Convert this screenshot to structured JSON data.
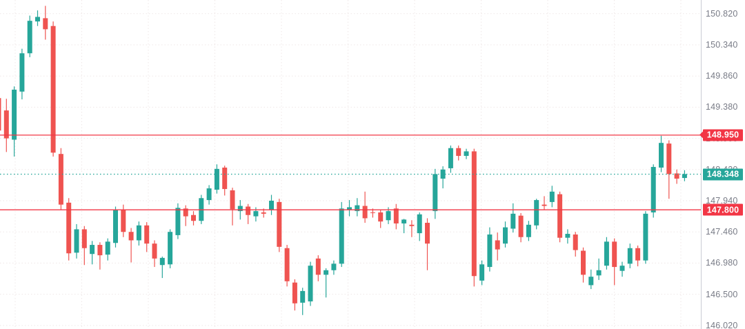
{
  "app": {
    "kind": "candlestick-price-chart",
    "background": "#ffffff"
  },
  "chart_data": {
    "type": "candlestick",
    "title": "",
    "xlabel": "",
    "ylabel": "",
    "up_color": "#26a69a",
    "down_color": "#ef5350",
    "grid": true,
    "grid_color": "#efe7e7",
    "y_axis": {
      "side": "right",
      "text_color": "#787b86",
      "border_color": "#c9ccd4",
      "visible_range": [
        145.97,
        151.03
      ],
      "tick_step": 0.48,
      "ticks": [
        "150.820",
        "150.340",
        "149.860",
        "149.380",
        "148.900",
        "148.420",
        "147.940",
        "147.460",
        "146.980",
        "146.500",
        "146.020"
      ]
    },
    "price_lines": [
      {
        "label": "148.950",
        "price": 148.95,
        "color": "#f23645",
        "style": "solid",
        "has_arrow": true,
        "role": "level-line"
      },
      {
        "label": "148.348",
        "price": 148.348,
        "color": "#26a69a",
        "style": "dotted",
        "has_arrow": false,
        "role": "last-price-line"
      },
      {
        "label": "147.800",
        "price": 147.8,
        "color": "#f23645",
        "style": "solid",
        "has_arrow": false,
        "role": "level-line"
      }
    ],
    "last_price": "148.348",
    "ohlc_order": [
      "open",
      "high",
      "low",
      "close"
    ],
    "candles": [
      [
        149.52,
        149.56,
        148.95,
        149.02
      ],
      [
        149.33,
        149.51,
        148.69,
        148.9
      ],
      [
        148.88,
        149.7,
        148.62,
        149.65
      ],
      [
        149.62,
        150.28,
        149.5,
        150.21
      ],
      [
        150.21,
        150.79,
        150.15,
        150.71
      ],
      [
        150.7,
        150.87,
        150.63,
        150.77
      ],
      [
        150.75,
        150.94,
        150.42,
        150.58
      ],
      [
        150.63,
        150.7,
        148.62,
        148.68
      ],
      [
        148.66,
        148.75,
        147.8,
        147.88
      ],
      [
        147.91,
        147.98,
        147.02,
        147.13
      ],
      [
        147.14,
        147.58,
        147.05,
        147.5
      ],
      [
        147.5,
        147.55,
        146.95,
        147.21
      ],
      [
        147.12,
        147.32,
        146.96,
        147.26
      ],
      [
        147.26,
        147.3,
        146.88,
        147.1
      ],
      [
        147.11,
        147.36,
        147.02,
        147.31
      ],
      [
        147.29,
        147.85,
        147.22,
        147.8
      ],
      [
        147.8,
        147.88,
        147.38,
        147.46
      ],
      [
        147.46,
        147.52,
        146.99,
        147.33
      ],
      [
        147.33,
        147.62,
        147.25,
        147.56
      ],
      [
        147.56,
        147.61,
        147.15,
        147.28
      ],
      [
        147.28,
        147.33,
        146.92,
        147.05
      ],
      [
        146.95,
        147.08,
        146.75,
        147.06
      ],
      [
        146.96,
        147.5,
        146.9,
        147.46
      ],
      [
        147.41,
        147.9,
        147.35,
        147.83
      ],
      [
        147.82,
        147.87,
        147.55,
        147.7
      ],
      [
        147.72,
        147.78,
        147.56,
        147.63
      ],
      [
        147.63,
        148.03,
        147.58,
        147.98
      ],
      [
        147.95,
        148.18,
        147.88,
        148.13
      ],
      [
        148.11,
        148.5,
        148.05,
        148.43
      ],
      [
        148.45,
        148.48,
        148.02,
        148.12
      ],
      [
        148.1,
        148.14,
        147.56,
        147.81
      ],
      [
        147.78,
        147.95,
        147.65,
        147.86
      ],
      [
        147.85,
        147.89,
        147.58,
        147.72
      ],
      [
        147.7,
        147.84,
        147.62,
        147.78
      ],
      [
        147.76,
        147.82,
        147.68,
        147.74
      ],
      [
        147.8,
        148.03,
        147.72,
        147.94
      ],
      [
        147.92,
        147.97,
        147.15,
        147.23
      ],
      [
        147.21,
        147.26,
        146.62,
        146.7
      ],
      [
        146.68,
        146.73,
        146.25,
        146.36
      ],
      [
        146.37,
        146.6,
        146.18,
        146.55
      ],
      [
        146.39,
        147.0,
        146.32,
        146.94
      ],
      [
        147.05,
        147.1,
        146.7,
        146.8
      ],
      [
        146.8,
        146.9,
        146.45,
        146.87
      ],
      [
        146.87,
        147.02,
        146.8,
        146.97
      ],
      [
        146.97,
        147.92,
        146.92,
        147.82
      ],
      [
        147.8,
        147.95,
        147.7,
        147.84
      ],
      [
        147.78,
        147.98,
        147.7,
        147.87
      ],
      [
        147.86,
        148.08,
        147.6,
        147.67
      ],
      [
        147.76,
        147.82,
        147.68,
        147.75
      ],
      [
        147.76,
        147.8,
        147.52,
        147.62
      ],
      [
        147.64,
        147.84,
        147.58,
        147.78
      ],
      [
        147.82,
        147.89,
        147.5,
        147.59
      ],
      [
        147.59,
        147.66,
        147.44,
        147.65
      ],
      [
        147.57,
        147.64,
        147.38,
        147.55
      ],
      [
        147.44,
        147.76,
        147.32,
        147.73
      ],
      [
        147.6,
        147.67,
        146.87,
        147.28
      ],
      [
        147.78,
        148.43,
        147.66,
        148.35
      ],
      [
        148.28,
        148.47,
        148.13,
        148.42
      ],
      [
        148.44,
        148.79,
        148.37,
        148.75
      ],
      [
        148.75,
        148.79,
        148.56,
        148.63
      ],
      [
        148.63,
        148.74,
        148.58,
        148.7
      ],
      [
        148.7,
        148.74,
        146.62,
        146.78
      ],
      [
        146.71,
        147.02,
        146.64,
        146.96
      ],
      [
        146.92,
        147.53,
        146.85,
        147.42
      ],
      [
        147.33,
        147.45,
        147.02,
        147.19
      ],
      [
        147.28,
        147.62,
        147.22,
        147.53
      ],
      [
        147.51,
        147.9,
        147.45,
        147.74
      ],
      [
        147.71,
        147.75,
        147.3,
        147.38
      ],
      [
        147.38,
        147.63,
        147.32,
        147.57
      ],
      [
        147.56,
        147.97,
        147.5,
        147.95
      ],
      [
        147.88,
        148.01,
        147.8,
        147.86
      ],
      [
        147.92,
        148.17,
        147.84,
        148.08
      ],
      [
        148.04,
        148.08,
        147.3,
        147.37
      ],
      [
        147.37,
        147.5,
        147.28,
        147.43
      ],
      [
        147.42,
        147.46,
        147.08,
        147.18
      ],
      [
        147.17,
        147.22,
        146.68,
        146.8
      ],
      [
        146.64,
        146.88,
        146.58,
        146.77
      ],
      [
        146.79,
        147.05,
        146.72,
        146.87
      ],
      [
        146.94,
        147.38,
        146.88,
        147.31
      ],
      [
        147.31,
        147.36,
        146.64,
        146.92
      ],
      [
        146.86,
        147.0,
        146.77,
        146.94
      ],
      [
        146.97,
        147.28,
        146.9,
        147.21
      ],
      [
        147.21,
        147.25,
        146.93,
        147.02
      ],
      [
        147.02,
        147.78,
        146.97,
        147.74
      ],
      [
        147.76,
        148.5,
        147.68,
        148.46
      ],
      [
        148.45,
        148.94,
        148.38,
        148.83
      ],
      [
        148.82,
        148.87,
        147.97,
        148.35
      ],
      [
        148.36,
        148.42,
        148.2,
        148.28
      ],
      [
        148.29,
        148.41,
        148.24,
        148.35
      ]
    ]
  }
}
